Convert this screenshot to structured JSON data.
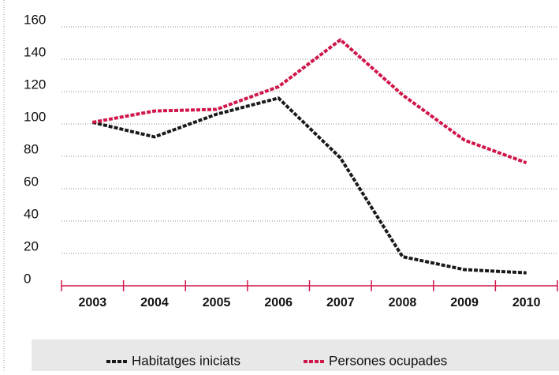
{
  "chart_data": {
    "type": "line",
    "categories": [
      "2003",
      "2004",
      "2005",
      "2006",
      "2007",
      "2008",
      "2009",
      "2010"
    ],
    "series": [
      {
        "name": "Habitatges iniciats",
        "color": "#1a1a1a",
        "values": [
          101,
          92,
          106,
          116,
          79,
          18,
          10,
          8
        ]
      },
      {
        "name": "Persones ocupades",
        "color": "#d0174a",
        "values": [
          101,
          108,
          109,
          123,
          152,
          118,
          90,
          76
        ]
      }
    ],
    "ylim": [
      0,
      160
    ],
    "yticks": [
      0,
      20,
      40,
      60,
      80,
      100,
      120,
      140,
      160
    ],
    "grid": true
  }
}
